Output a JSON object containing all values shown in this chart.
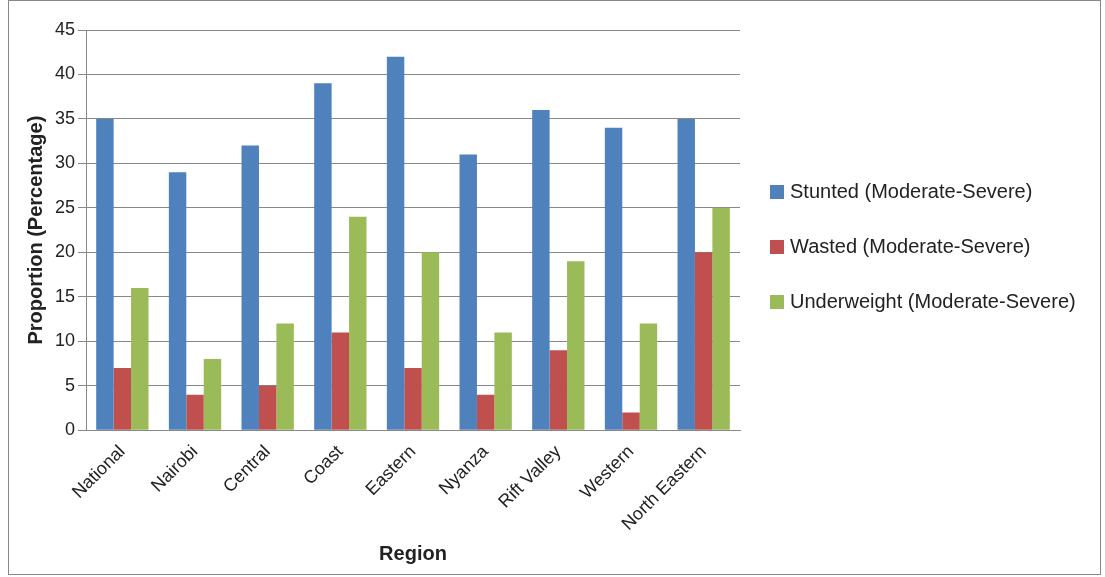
{
  "chart_data": {
    "type": "bar",
    "xlabel": "Region",
    "ylabel": "Proportion (Percentage)",
    "categories": [
      "National",
      "Nairobi",
      "Central",
      "Coast",
      "Eastern",
      "Nyanza",
      "Rift Valley",
      "Western",
      "North Eastern"
    ],
    "series": [
      {
        "name": "Stunted (Moderate-Severe)",
        "color": "#4f81bd",
        "values": [
          35,
          29,
          32,
          39,
          42,
          31,
          36,
          34,
          35
        ]
      },
      {
        "name": "Wasted (Moderate-Severe)",
        "color": "#c0504d",
        "values": [
          7,
          4,
          5,
          11,
          7,
          4,
          9,
          2,
          20
        ]
      },
      {
        "name": "Underweight (Moderate-Severe)",
        "color": "#9bbb59",
        "values": [
          16,
          8,
          12,
          24,
          20,
          11,
          19,
          12,
          25
        ]
      }
    ],
    "ylim": [
      0,
      45
    ],
    "yticks": [
      0,
      5,
      10,
      15,
      20,
      25,
      30,
      35,
      40,
      45
    ],
    "grid": "y",
    "legend": "right"
  }
}
